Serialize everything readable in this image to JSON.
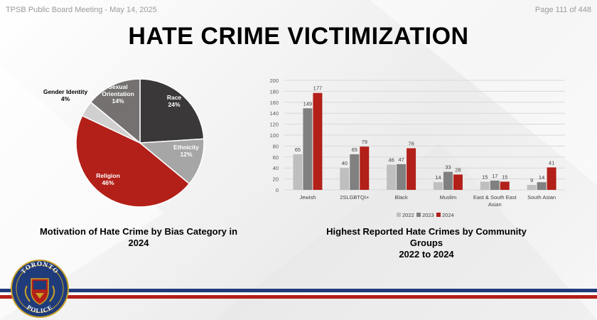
{
  "header": {
    "meeting": "TPSB Public Board Meeting - May 14, 2025",
    "page": "Page 111 of 448"
  },
  "title": "HATE CRIME VICTIMIZATION",
  "captions": {
    "left": [
      "Motivation of Hate Crime by Bias Category in",
      "2024"
    ],
    "right": [
      "Highest Reported Hate Crimes by Community",
      "Groups",
      "2022 to 2024"
    ]
  },
  "logo": {
    "top": "TORONTO",
    "bottom": "POLICE"
  },
  "colors": {
    "navy": "#1f3b7a",
    "red": "#b22019"
  },
  "chart_data": [
    {
      "type": "pie",
      "slices": [
        {
          "name": "Race",
          "value": 24,
          "label": "24%",
          "color": "#3a3838"
        },
        {
          "name": "Ethnicity",
          "value": 12,
          "label": "12%",
          "color": "#a6a6a6"
        },
        {
          "name": "Religion",
          "value": 46,
          "label": "46%",
          "color": "#b22019"
        },
        {
          "name": "Gender Identity",
          "value": 4,
          "label": "4%",
          "color": "#d0d0d0"
        },
        {
          "name": "Sexual Orientation",
          "value": 14,
          "label": "14%",
          "color": "#767171"
        }
      ]
    },
    {
      "type": "bar",
      "categories": [
        "Jewish",
        "2SLGBTQI+",
        "Black",
        "Muslim",
        "East & South East Asian",
        "South Asian"
      ],
      "series": [
        {
          "name": "2022",
          "values": [
            65,
            40,
            46,
            14,
            15,
            9
          ],
          "color": "#bfbfbf"
        },
        {
          "name": "2023",
          "values": [
            149,
            65,
            47,
            33,
            17,
            14
          ],
          "color": "#808080"
        },
        {
          "name": "2024",
          "values": [
            177,
            79,
            76,
            28,
            15,
            41
          ],
          "color": "#b22019"
        }
      ],
      "ylim": [
        0,
        200
      ],
      "yticks": [
        0,
        20,
        40,
        60,
        80,
        100,
        120,
        140,
        160,
        180,
        200
      ],
      "grid": true,
      "legend": "bottom"
    }
  ]
}
